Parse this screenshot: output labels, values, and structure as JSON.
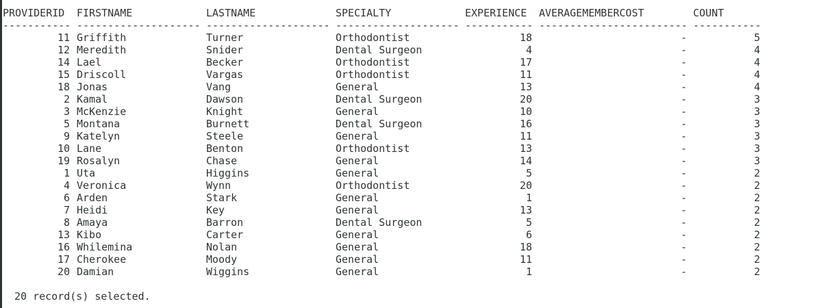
{
  "headers": [
    "PROVIDERID",
    "FIRSTNAME",
    "LASTNAME",
    "SPECIALTY",
    "EXPERIENCE",
    "AVERAGEMEMBERCOST",
    "COUNT"
  ],
  "separators": [
    "-----------",
    "--------------------",
    "--------------------",
    "--------------------",
    "-----------",
    "------------------------",
    "-----------"
  ],
  "rows": [
    [
      "11",
      "Griffith",
      "Turner",
      "Orthodontist",
      "18",
      "-",
      "5"
    ],
    [
      "12",
      "Meredith",
      "Snider",
      "Dental Surgeon",
      "4",
      "-",
      "4"
    ],
    [
      "14",
      "Lael",
      "Becker",
      "Orthodontist",
      "17",
      "-",
      "4"
    ],
    [
      "15",
      "Driscoll",
      "Vargas",
      "Orthodontist",
      "11",
      "-",
      "4"
    ],
    [
      "18",
      "Jonas",
      "Vang",
      "General",
      "13",
      "-",
      "4"
    ],
    [
      "2",
      "Kamal",
      "Dawson",
      "Dental Surgeon",
      "20",
      "-",
      "3"
    ],
    [
      "3",
      "McKenzie",
      "Knight",
      "General",
      "10",
      "-",
      "3"
    ],
    [
      "5",
      "Montana",
      "Burnett",
      "Dental Surgeon",
      "16",
      "-",
      "3"
    ],
    [
      "9",
      "Katelyn",
      "Steele",
      "General",
      "11",
      "-",
      "3"
    ],
    [
      "10",
      "Lane",
      "Benton",
      "Orthodontist",
      "13",
      "-",
      "3"
    ],
    [
      "19",
      "Rosalyn",
      "Chase",
      "General",
      "14",
      "-",
      "3"
    ],
    [
      "1",
      "Uta",
      "Higgins",
      "General",
      "5",
      "-",
      "2"
    ],
    [
      "4",
      "Veronica",
      "Wynn",
      "Orthodontist",
      "20",
      "-",
      "2"
    ],
    [
      "6",
      "Arden",
      "Stark",
      "General",
      "1",
      "-",
      "2"
    ],
    [
      "7",
      "Heidi",
      "Key",
      "General",
      "13",
      "-",
      "2"
    ],
    [
      "8",
      "Amaya",
      "Barron",
      "Dental Surgeon",
      "5",
      "-",
      "2"
    ],
    [
      "13",
      "Kibo",
      "Carter",
      "General",
      "6",
      "-",
      "2"
    ],
    [
      "16",
      "Whilemina",
      "Nolan",
      "General",
      "18",
      "-",
      "2"
    ],
    [
      "17",
      "Cherokee",
      "Moody",
      "General",
      "11",
      "-",
      "2"
    ],
    [
      "20",
      "Damian",
      "Wiggins",
      "General",
      "1",
      "-",
      "2"
    ]
  ],
  "status": "20 record(s) selected."
}
